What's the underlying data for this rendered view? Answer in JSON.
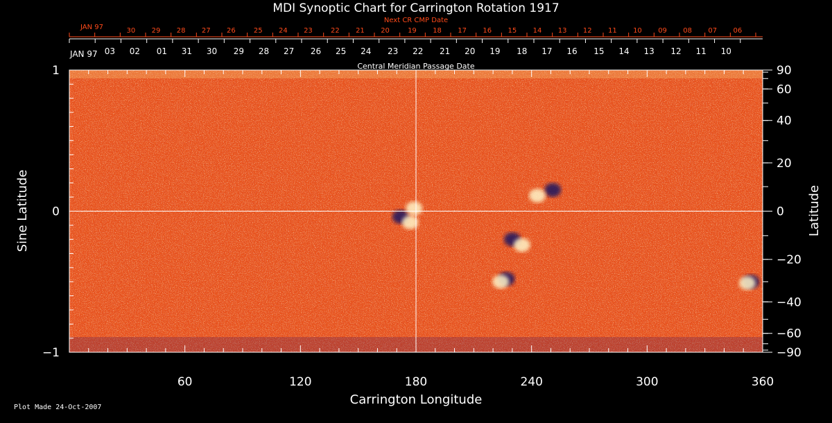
{
  "colors": {
    "background": "#000000",
    "map_base": "#e8531c",
    "axis": "#ffffff",
    "next_cr_text": "#ff4a1a",
    "positive_flux": "#fff4c8",
    "negative_flux": "#1a1460"
  },
  "chart_data": {
    "type": "heatmap",
    "title": "MDI Synoptic Chart for Carrington Rotation 1917",
    "xlabel": "Carrington Longitude",
    "ylabel_left": "Sine Latitude",
    "ylabel_right": "Latitude",
    "xlim": [
      0,
      360
    ],
    "ylim": [
      -1,
      1
    ],
    "x_ticks": [
      60,
      120,
      180,
      240,
      300,
      360
    ],
    "y_ticks_left": [
      {
        "value": 1,
        "label": "1"
      },
      {
        "value": 0,
        "label": "0"
      },
      {
        "value": -1,
        "label": "−1"
      }
    ],
    "y_ticks_right": [
      {
        "lat": 90,
        "label": "90"
      },
      {
        "lat": 60,
        "label": "60"
      },
      {
        "lat": 40,
        "label": "40"
      },
      {
        "lat": 20,
        "label": "20"
      },
      {
        "lat": 0,
        "label": "0"
      },
      {
        "lat": -20,
        "label": "−20"
      },
      {
        "lat": -40,
        "label": "−40"
      },
      {
        "lat": -60,
        "label": "−60"
      },
      {
        "lat": -90,
        "label": "−90"
      }
    ],
    "reference_lines": {
      "longitude": 180,
      "sine_latitude": 0
    },
    "cmp_axis_title": "Central Meridian Passage Date",
    "cmp_month": "JAN 97",
    "cmp_dates": [
      {
        "lon": 21,
        "label": "03"
      },
      {
        "lon": 34,
        "label": "02"
      },
      {
        "lon": 48,
        "label": "01"
      },
      {
        "lon": 61,
        "label": "31"
      },
      {
        "lon": 74,
        "label": "30"
      },
      {
        "lon": 88,
        "label": "29"
      },
      {
        "lon": 101,
        "label": "28"
      },
      {
        "lon": 114,
        "label": "27"
      },
      {
        "lon": 128,
        "label": "26"
      },
      {
        "lon": 141,
        "label": "25"
      },
      {
        "lon": 154,
        "label": "24"
      },
      {
        "lon": 168,
        "label": "23"
      },
      {
        "lon": 181,
        "label": "22"
      },
      {
        "lon": 195,
        "label": "21"
      },
      {
        "lon": 208,
        "label": "20"
      },
      {
        "lon": 221,
        "label": "19"
      },
      {
        "lon": 235,
        "label": "18"
      },
      {
        "lon": 248,
        "label": "17"
      },
      {
        "lon": 261,
        "label": "16"
      },
      {
        "lon": 275,
        "label": "15"
      },
      {
        "lon": 288,
        "label": "14"
      },
      {
        "lon": 301,
        "label": "13"
      },
      {
        "lon": 315,
        "label": "12"
      },
      {
        "lon": 328,
        "label": "11"
      },
      {
        "lon": 341,
        "label": "10"
      }
    ],
    "next_cr_title": "Next CR CMP Date",
    "next_cr_month": "JAN 97",
    "next_cr_dates": [
      {
        "lon": 32,
        "label": "30"
      },
      {
        "lon": 45,
        "label": "29"
      },
      {
        "lon": 58,
        "label": "28"
      },
      {
        "lon": 71,
        "label": "27"
      },
      {
        "lon": 84,
        "label": "26"
      },
      {
        "lon": 98,
        "label": "25"
      },
      {
        "lon": 111,
        "label": "24"
      },
      {
        "lon": 124,
        "label": "23"
      },
      {
        "lon": 138,
        "label": "22"
      },
      {
        "lon": 151,
        "label": "21"
      },
      {
        "lon": 164,
        "label": "20"
      },
      {
        "lon": 178,
        "label": "19"
      },
      {
        "lon": 191,
        "label": "18"
      },
      {
        "lon": 204,
        "label": "17"
      },
      {
        "lon": 217,
        "label": "16"
      },
      {
        "lon": 230,
        "label": "15"
      },
      {
        "lon": 243,
        "label": "14"
      },
      {
        "lon": 256,
        "label": "13"
      },
      {
        "lon": 269,
        "label": "12"
      },
      {
        "lon": 282,
        "label": "11"
      },
      {
        "lon": 295,
        "label": "10"
      },
      {
        "lon": 308,
        "label": "09"
      },
      {
        "lon": 321,
        "label": "08"
      },
      {
        "lon": 334,
        "label": "07"
      },
      {
        "lon": 347,
        "label": "06"
      }
    ],
    "active_regions": [
      {
        "lon": 172,
        "sinlat": -0.04,
        "polarity": "negative"
      },
      {
        "lon": 177,
        "sinlat": -0.08,
        "polarity": "positive"
      },
      {
        "lon": 179,
        "sinlat": 0.02,
        "polarity": "positive"
      },
      {
        "lon": 251,
        "sinlat": 0.15,
        "polarity": "negative"
      },
      {
        "lon": 243,
        "sinlat": 0.11,
        "polarity": "positive"
      },
      {
        "lon": 230,
        "sinlat": -0.2,
        "polarity": "negative"
      },
      {
        "lon": 235,
        "sinlat": -0.24,
        "polarity": "positive"
      },
      {
        "lon": 227,
        "sinlat": -0.48,
        "polarity": "negative"
      },
      {
        "lon": 224,
        "sinlat": -0.5,
        "polarity": "positive"
      },
      {
        "lon": 354,
        "sinlat": -0.5,
        "polarity": "negative"
      },
      {
        "lon": 352,
        "sinlat": -0.51,
        "polarity": "positive"
      }
    ]
  },
  "footer": {
    "plot_made": "Plot Made 24-Oct-2007"
  }
}
